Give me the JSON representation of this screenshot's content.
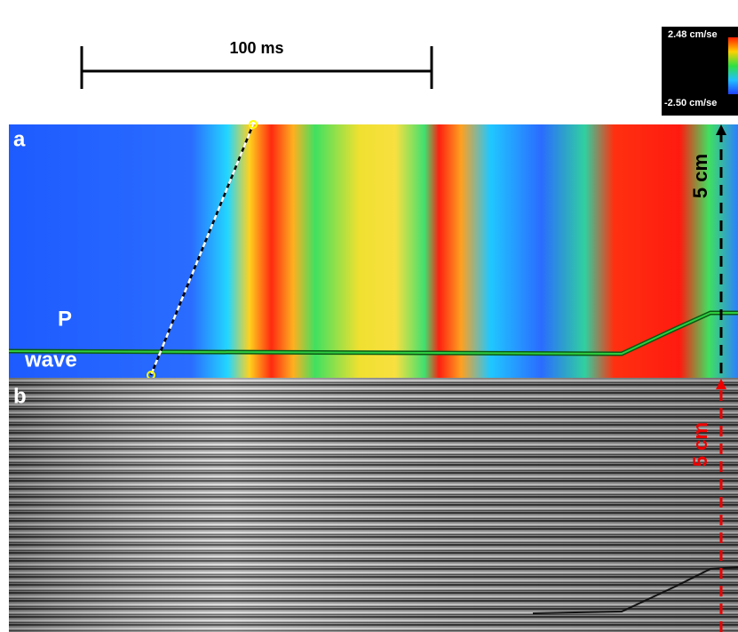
{
  "scale_bar": {
    "label": "100 ms"
  },
  "colorbar": {
    "max_label": "2.48 cm/se",
    "min_label": "-2.50 cm/se"
  },
  "panel_a": {
    "label": "a",
    "wave_label": [
      "P",
      "wave"
    ],
    "scale_label": "5 cm"
  },
  "panel_b": {
    "label": "b",
    "scale_label": "5 cm"
  }
}
